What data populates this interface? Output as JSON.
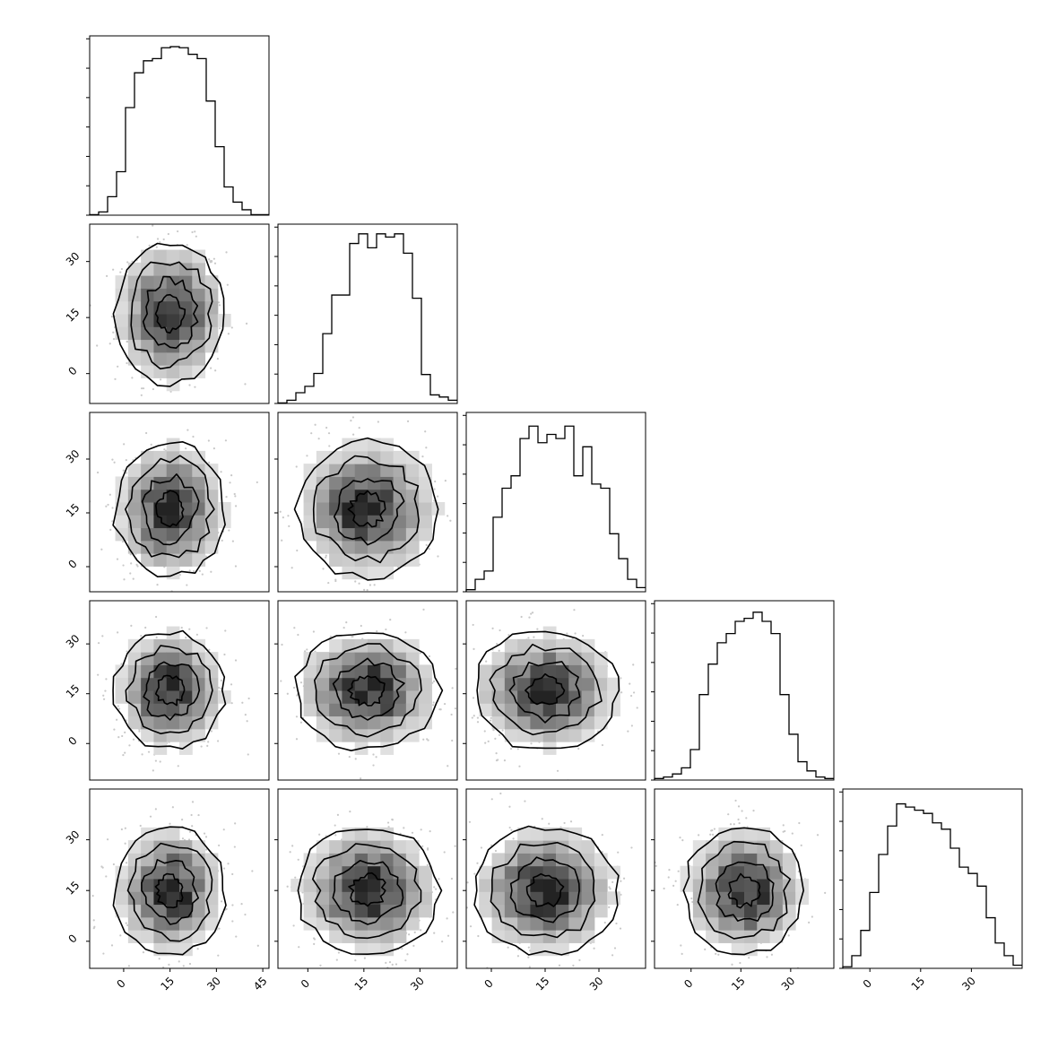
{
  "chart_data": {
    "type": "corner",
    "n_params": 5,
    "xticks": {
      "0": [
        "0",
        "15",
        "30",
        "45"
      ],
      "1": [
        "0",
        "15",
        "30"
      ],
      "2": [
        "0",
        "15",
        "30"
      ],
      "3": [
        "0",
        "15",
        "30"
      ],
      "4": [
        "0",
        "15",
        "30"
      ]
    },
    "yticks": [
      "30",
      "15",
      "0"
    ],
    "ranges": [
      [
        -11,
        47
      ],
      [
        -8,
        40
      ],
      [
        -7,
        43
      ],
      [
        -11,
        43
      ],
      [
        -8,
        45
      ]
    ],
    "hist_counts": [
      [
        0.5,
        3,
        17,
        40,
        99,
        131,
        142,
        144,
        154,
        155,
        154,
        148,
        144,
        105,
        63,
        26,
        12,
        5,
        0.5,
        0.5
      ],
      [
        0.5,
        3,
        10,
        16,
        28,
        65,
        101,
        101,
        149,
        158,
        145,
        158,
        155,
        158,
        140,
        98,
        27,
        8,
        6,
        3
      ],
      [
        0.5,
        3,
        5,
        18,
        25,
        28,
        37,
        40,
        36,
        38,
        37,
        40,
        28,
        35,
        26,
        25,
        14,
        8,
        3,
        1
      ],
      [
        0.5,
        1,
        2,
        4,
        10,
        28,
        38,
        45,
        48,
        52,
        53,
        55,
        52,
        48,
        28,
        15,
        6,
        3,
        1,
        0.5
      ],
      [
        0.5,
        4,
        12,
        24,
        36,
        45,
        52,
        51,
        50,
        49,
        46,
        44,
        38,
        32,
        30,
        26,
        16,
        8,
        4,
        1
      ]
    ],
    "hist_max": [
      160,
      162,
      42,
      57,
      55
    ],
    "pairs": [
      {
        "row": 1,
        "col": 0,
        "cx": 15,
        "cy": 16,
        "sx": 8.5,
        "sy": 9
      },
      {
        "row": 2,
        "col": 0,
        "cx": 15,
        "cy": 16,
        "sx": 8.5,
        "sy": 9
      },
      {
        "row": 2,
        "col": 1,
        "cx": 16,
        "cy": 16,
        "sx": 9,
        "sy": 9
      },
      {
        "row": 3,
        "col": 0,
        "cx": 15,
        "cy": 16,
        "sx": 8.5,
        "sy": 8.5
      },
      {
        "row": 3,
        "col": 1,
        "cx": 16,
        "cy": 16,
        "sx": 9,
        "sy": 8.5
      },
      {
        "row": 3,
        "col": 2,
        "cx": 15,
        "cy": 16,
        "sx": 9.5,
        "sy": 8.5
      },
      {
        "row": 4,
        "col": 0,
        "cx": 15,
        "cy": 15,
        "sx": 8.5,
        "sy": 9
      },
      {
        "row": 4,
        "col": 1,
        "cx": 16,
        "cy": 15,
        "sx": 9,
        "sy": 9
      },
      {
        "row": 4,
        "col": 2,
        "cx": 15,
        "cy": 15,
        "sx": 9.5,
        "sy": 9
      },
      {
        "row": 4,
        "col": 3,
        "cx": 16,
        "cy": 15,
        "sx": 8.5,
        "sy": 9
      }
    ],
    "colors": {
      "line": "#000000",
      "scatter": "#c8c8c8",
      "background": "#ffffff"
    }
  }
}
